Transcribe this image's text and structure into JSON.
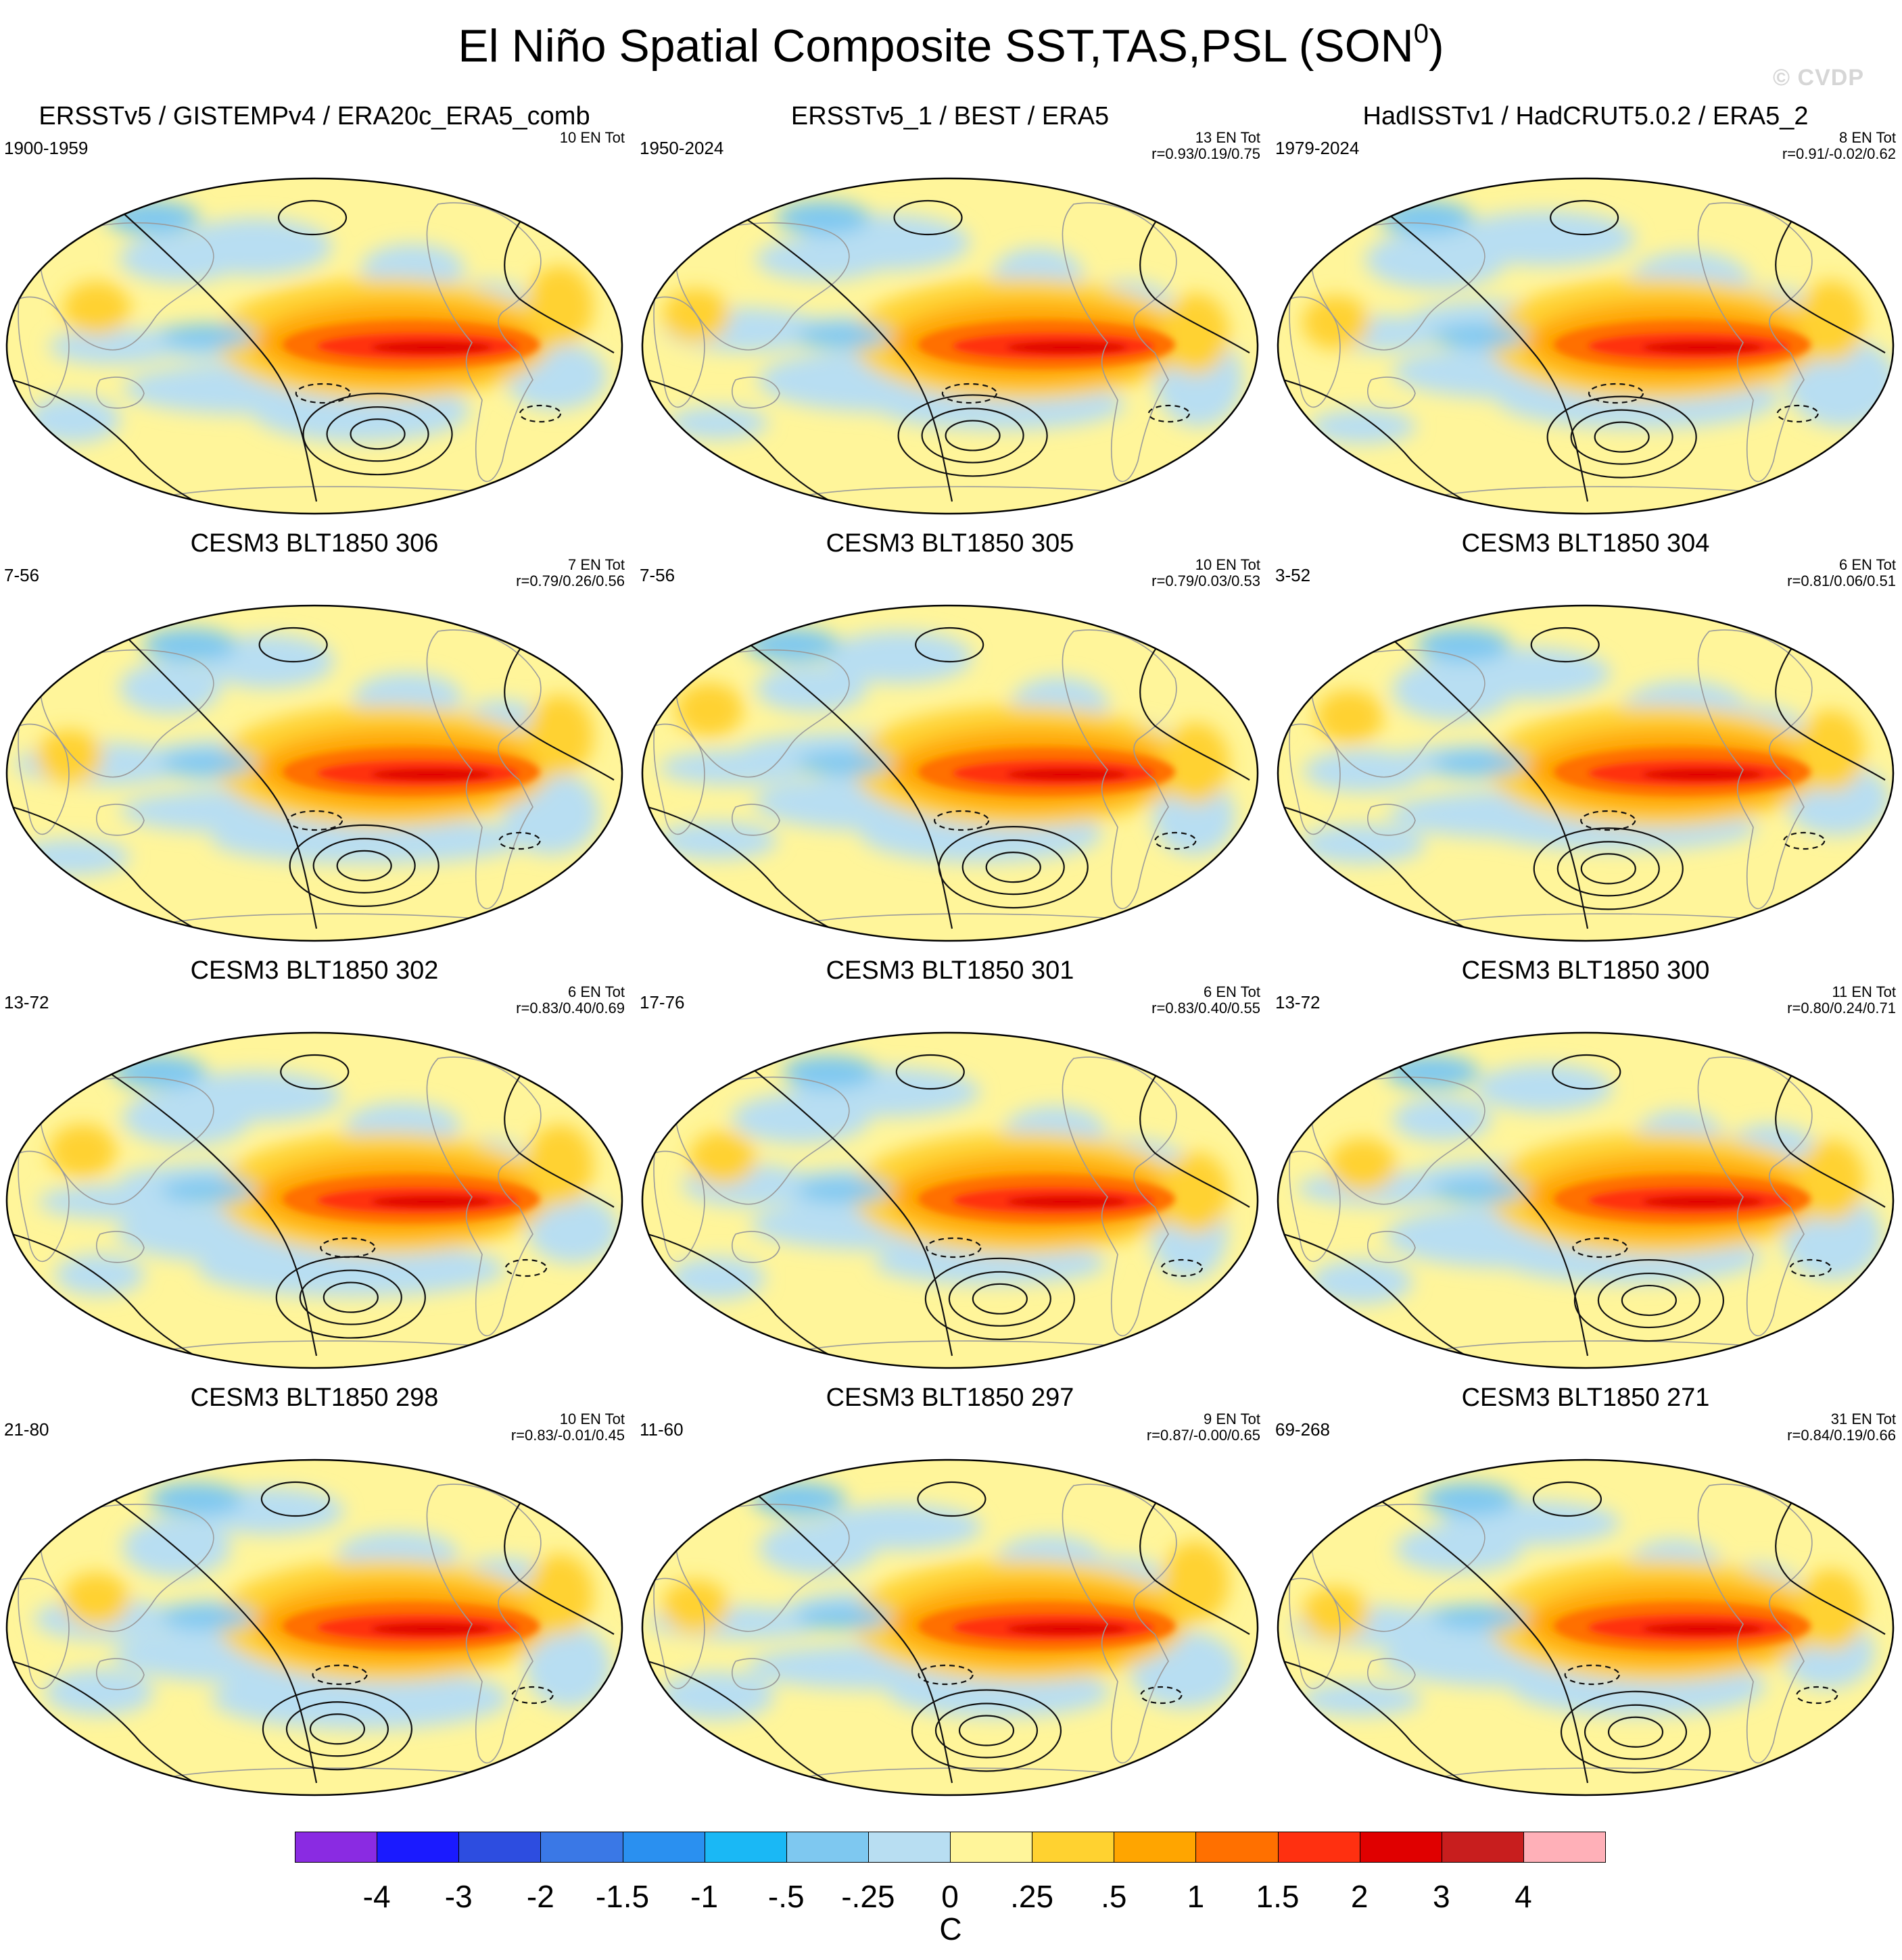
{
  "title": {
    "main": "El Niño Spatial Composite SST,TAS,PSL (SON",
    "superscript": "0",
    "closing": ")",
    "watermark": "© CVDP"
  },
  "panels": [
    {
      "title": "ERSSTv5 / GISTEMPv4 / ERA20c_ERA5_comb",
      "years": "1900-1959",
      "count": "10 EN Tot",
      "r": ""
    },
    {
      "title": "ERSSTv5_1 / BEST / ERA5",
      "years": "1950-2024",
      "count": "13 EN Tot",
      "r": "r=0.93/0.19/0.75"
    },
    {
      "title": "HadISSTv1 / HadCRUT5.0.2 / ERA5_2",
      "years": "1979-2024",
      "count": "8 EN Tot",
      "r": "r=0.91/-0.02/0.62"
    },
    {
      "title": "CESM3 BLT1850 306",
      "years": "7-56",
      "count": "7 EN Tot",
      "r": "r=0.79/0.26/0.56"
    },
    {
      "title": "CESM3 BLT1850 305",
      "years": "7-56",
      "count": "10 EN Tot",
      "r": "r=0.79/0.03/0.53"
    },
    {
      "title": "CESM3 BLT1850 304",
      "years": "3-52",
      "count": "6 EN Tot",
      "r": "r=0.81/0.06/0.51"
    },
    {
      "title": "CESM3 BLT1850 302",
      "years": "13-72",
      "count": "6 EN Tot",
      "r": "r=0.83/0.40/0.69"
    },
    {
      "title": "CESM3 BLT1850 301",
      "years": "17-76",
      "count": "6 EN Tot",
      "r": "r=0.83/0.40/0.55"
    },
    {
      "title": "CESM3 BLT1850 300",
      "years": "13-72",
      "count": "11 EN Tot",
      "r": "r=0.80/0.24/0.71"
    },
    {
      "title": "CESM3 BLT1850 298",
      "years": "21-80",
      "count": "10 EN Tot",
      "r": "r=0.83/-0.01/0.45"
    },
    {
      "title": "CESM3 BLT1850 297",
      "years": "11-60",
      "count": "9 EN Tot",
      "r": "r=0.87/-0.00/0.65"
    },
    {
      "title": "CESM3 BLT1850 271",
      "years": "69-268",
      "count": "31 EN Tot",
      "r": "r=0.84/0.19/0.66"
    }
  ],
  "colorbar": {
    "units": "C",
    "labels": [
      "-4",
      "-3",
      "-2",
      "-1.5",
      "-1",
      "-.5",
      "-.25",
      "0",
      ".25",
      ".5",
      "1",
      "1.5",
      "2",
      "3",
      "4"
    ],
    "colors": [
      "#8a2be2",
      "#1a1aff",
      "#2d4de0",
      "#3a78e6",
      "#2a90f0",
      "#1ab8f5",
      "#7ec8f0",
      "#b8def2",
      "#fff59a",
      "#ffd230",
      "#ffa500",
      "#ff7000",
      "#ff3010",
      "#e00000",
      "#c81e1e",
      "#ffb0b8"
    ]
  },
  "chart_data": {
    "type": "heatmap",
    "projection": "Robinson (global)",
    "fields": "SST/TAS shaded (C), PSL contours (black lines, dashed negative)",
    "season": "SON",
    "units": "C",
    "levels": [
      -4,
      -3,
      -2,
      -1.5,
      -1,
      -0.5,
      -0.25,
      0,
      0.25,
      0.5,
      1,
      1.5,
      2,
      3,
      4
    ],
    "layout": "4 rows x 3 columns",
    "pattern": "warm anomaly (1.5 to 3 C) along the central/eastern equatorial Pacific; cool anomaly in western Pacific horseshoe"
  }
}
